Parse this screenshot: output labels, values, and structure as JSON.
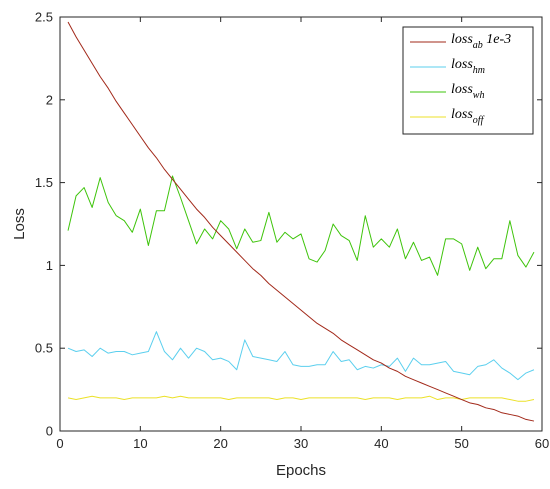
{
  "chart_data": {
    "type": "line",
    "xlabel": "Epochs",
    "ylabel": "Loss",
    "xlim": [
      0,
      60
    ],
    "ylim": [
      0,
      2.5
    ],
    "xticks": [
      "0",
      "10",
      "20",
      "30",
      "40",
      "50",
      "60"
    ],
    "yticks": [
      "0",
      "0.5",
      "1",
      "1.5",
      "2",
      "2.5"
    ],
    "grid": false,
    "legend_position": "top-right",
    "x": [
      1,
      2,
      3,
      4,
      5,
      6,
      7,
      8,
      9,
      10,
      11,
      12,
      13,
      14,
      15,
      16,
      17,
      18,
      19,
      20,
      21,
      22,
      23,
      24,
      25,
      26,
      27,
      28,
      29,
      30,
      31,
      32,
      33,
      34,
      35,
      36,
      37,
      38,
      39,
      40,
      41,
      42,
      43,
      44,
      45,
      46,
      47,
      48,
      49,
      50,
      51,
      52,
      53,
      54,
      55,
      56,
      57,
      58,
      59
    ],
    "series": [
      {
        "name": "loss",
        "subscript": "ab",
        "suffix": " 1e-3",
        "color": "#a2291a",
        "values": [
          2.47,
          2.38,
          2.3,
          2.22,
          2.14,
          2.07,
          1.99,
          1.92,
          1.85,
          1.78,
          1.71,
          1.65,
          1.58,
          1.52,
          1.46,
          1.4,
          1.34,
          1.29,
          1.23,
          1.18,
          1.13,
          1.08,
          1.03,
          0.98,
          0.94,
          0.89,
          0.85,
          0.81,
          0.77,
          0.73,
          0.69,
          0.65,
          0.62,
          0.59,
          0.55,
          0.52,
          0.49,
          0.46,
          0.43,
          0.41,
          0.38,
          0.36,
          0.33,
          0.31,
          0.29,
          0.27,
          0.25,
          0.23,
          0.21,
          0.19,
          0.17,
          0.16,
          0.14,
          0.13,
          0.11,
          0.1,
          0.09,
          0.07,
          0.06
        ]
      },
      {
        "name": "loss",
        "subscript": "hm",
        "suffix": "",
        "color": "#5bcfee",
        "values": [
          0.5,
          0.48,
          0.49,
          0.45,
          0.5,
          0.47,
          0.48,
          0.48,
          0.46,
          0.47,
          0.48,
          0.6,
          0.48,
          0.43,
          0.5,
          0.44,
          0.5,
          0.48,
          0.43,
          0.44,
          0.42,
          0.37,
          0.55,
          0.45,
          0.44,
          0.43,
          0.42,
          0.48,
          0.4,
          0.39,
          0.39,
          0.4,
          0.4,
          0.48,
          0.42,
          0.43,
          0.37,
          0.39,
          0.38,
          0.4,
          0.39,
          0.44,
          0.36,
          0.44,
          0.4,
          0.4,
          0.41,
          0.42,
          0.36,
          0.35,
          0.34,
          0.39,
          0.4,
          0.43,
          0.38,
          0.35,
          0.31,
          0.35,
          0.37
        ]
      },
      {
        "name": "loss",
        "subscript": "wh",
        "suffix": "",
        "color": "#3ec40b",
        "values": [
          1.21,
          1.42,
          1.47,
          1.35,
          1.53,
          1.38,
          1.3,
          1.27,
          1.2,
          1.34,
          1.12,
          1.33,
          1.33,
          1.54,
          1.41,
          1.27,
          1.13,
          1.22,
          1.16,
          1.27,
          1.22,
          1.1,
          1.22,
          1.14,
          1.15,
          1.32,
          1.14,
          1.2,
          1.16,
          1.19,
          1.04,
          1.02,
          1.09,
          1.25,
          1.18,
          1.15,
          1.03,
          1.3,
          1.11,
          1.16,
          1.11,
          1.22,
          1.04,
          1.14,
          1.03,
          1.05,
          0.94,
          1.16,
          1.16,
          1.13,
          0.97,
          1.11,
          0.98,
          1.04,
          1.04,
          1.27,
          1.06,
          0.99,
          1.08
        ]
      },
      {
        "name": "loss",
        "subscript": "off",
        "suffix": "",
        "color": "#ece128",
        "values": [
          0.2,
          0.19,
          0.2,
          0.21,
          0.2,
          0.2,
          0.2,
          0.19,
          0.2,
          0.2,
          0.2,
          0.2,
          0.21,
          0.2,
          0.21,
          0.2,
          0.2,
          0.2,
          0.2,
          0.2,
          0.19,
          0.2,
          0.2,
          0.2,
          0.2,
          0.2,
          0.19,
          0.2,
          0.2,
          0.19,
          0.2,
          0.2,
          0.2,
          0.2,
          0.2,
          0.2,
          0.2,
          0.19,
          0.2,
          0.2,
          0.2,
          0.19,
          0.2,
          0.2,
          0.2,
          0.21,
          0.19,
          0.2,
          0.2,
          0.19,
          0.2,
          0.2,
          0.2,
          0.2,
          0.2,
          0.19,
          0.18,
          0.18,
          0.19
        ]
      }
    ]
  }
}
